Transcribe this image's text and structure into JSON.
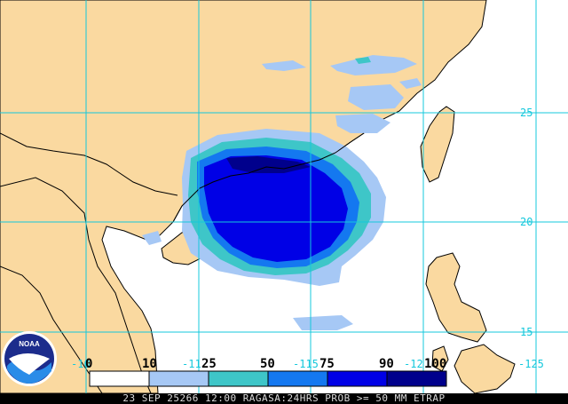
{
  "map": {
    "grid_color": "#14c8dc",
    "land_color": "#fad9a0",
    "sea_color": "#ffffff",
    "latitude_labels": [
      "25",
      "20",
      "15"
    ],
    "longitude_labels": [
      "-10",
      "-11",
      "-115",
      "-12",
      "-125"
    ]
  },
  "legend": {
    "ticks": [
      "0",
      "10",
      "25",
      "50",
      "75",
      "90",
      "100"
    ],
    "colors": [
      "#ffffff",
      "#a6c8f5",
      "#3ec6c8",
      "#1478f0",
      "#0000e6",
      "#00008c"
    ]
  },
  "logo": {
    "text": "NOAA"
  },
  "footer": {
    "text": "23 SEP 25266 12:00 RAGASA:24HRS PROB >= 50 MM ETRAP"
  }
}
